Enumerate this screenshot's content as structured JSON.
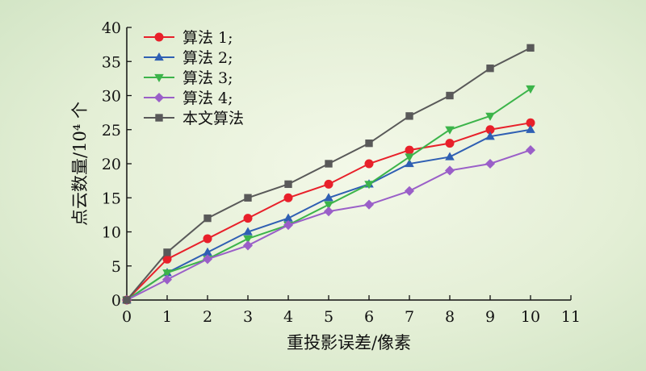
{
  "chart_data": {
    "type": "line",
    "title": "",
    "xlabel": "重投影误差/像素",
    "ylabel": "点云数量/10⁴ 个",
    "xlim": [
      0,
      11
    ],
    "ylim": [
      0,
      40
    ],
    "xticks": [
      0,
      1,
      2,
      3,
      4,
      5,
      6,
      7,
      8,
      9,
      10,
      11
    ],
    "yticks": [
      0,
      5,
      10,
      15,
      20,
      25,
      30,
      35,
      40
    ],
    "grid": false,
    "legend_position": "top-left",
    "x": [
      0,
      1,
      2,
      3,
      4,
      5,
      6,
      7,
      8,
      9,
      10
    ],
    "series": [
      {
        "name": "算法 1;",
        "color": "#e8202a",
        "marker": "circle",
        "values": [
          0,
          6,
          9,
          12,
          15,
          17,
          20,
          22,
          23,
          25,
          26
        ]
      },
      {
        "name": "算法 2;",
        "color": "#2f5fb3",
        "marker": "triangle-up",
        "values": [
          0,
          4,
          7,
          10,
          12,
          15,
          17,
          20,
          21,
          24,
          25
        ]
      },
      {
        "name": "算法 3;",
        "color": "#3cb44a",
        "marker": "triangle-down",
        "values": [
          0,
          4,
          6,
          9,
          11,
          14,
          17,
          21,
          25,
          27,
          31
        ]
      },
      {
        "name": "算法 4;",
        "color": "#9a5fc8",
        "marker": "diamond",
        "values": [
          0,
          3,
          6,
          8,
          11,
          13,
          14,
          16,
          19,
          20,
          22
        ]
      },
      {
        "name": "本文算法",
        "color": "#595959",
        "marker": "square",
        "values": [
          0,
          7,
          12,
          15,
          17,
          20,
          23,
          27,
          30,
          34,
          37
        ]
      }
    ]
  }
}
